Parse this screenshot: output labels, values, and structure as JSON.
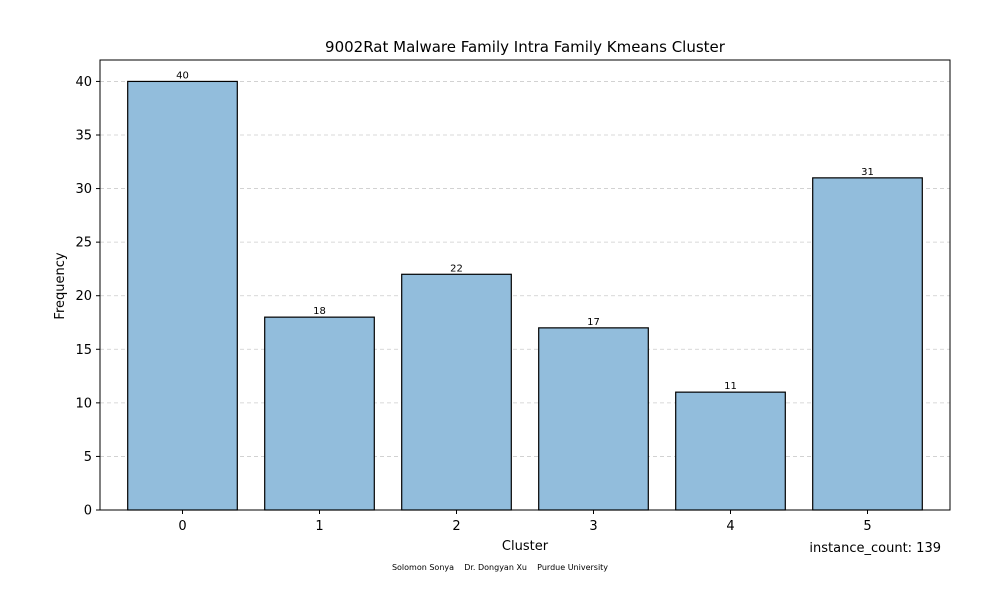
{
  "chart_data": {
    "type": "bar",
    "title": "9002Rat Malware Family Intra Family Kmeans Cluster",
    "xlabel": "Cluster",
    "ylabel": "Frequency",
    "categories": [
      "0",
      "1",
      "2",
      "3",
      "4",
      "5"
    ],
    "values": [
      40,
      18,
      22,
      17,
      11,
      31
    ],
    "ylim": [
      0,
      42
    ],
    "yticks": [
      0,
      5,
      10,
      15,
      20,
      25,
      30,
      35,
      40
    ],
    "grid": true,
    "bar_color": "#92bddc",
    "annotation": "instance_count: 139",
    "credit": "Solomon Sonya    Dr. Dongyan Xu    Purdue University"
  }
}
